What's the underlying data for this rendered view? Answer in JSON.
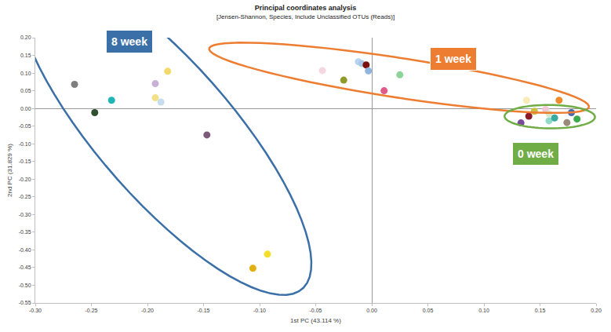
{
  "chart_data": {
    "type": "scatter",
    "title": "Principal coordinates analysis",
    "subtitle": "[Jensen-Shannon, Species, Include Unclassified OTUs (Reads)]",
    "x_label": "1st PC (43.114 %)",
    "y_label": "2nd PC (31.829 %)",
    "xlim": [
      -0.3,
      0.2
    ],
    "xticks": [
      {
        "value": -0.3,
        "label": "-0.30"
      },
      -0.25,
      {
        "value": -0.2,
        "label": "-0.20"
      },
      -0.15,
      {
        "value": -0.1,
        "label": "-0.10"
      },
      -0.05,
      {
        "value": 0,
        "label": "0.00"
      },
      0.05,
      {
        "value": 0.1,
        "label": "0.10"
      },
      0.15,
      {
        "value": 0.2,
        "label": "0.20"
      }
    ],
    "ylim": [
      -0.55,
      0.2
    ],
    "yticks": [
      -0.55,
      {
        "value": -0.5,
        "label": "-0.50"
      },
      -0.45,
      {
        "value": -0.4,
        "label": "-0.40"
      },
      -0.35,
      {
        "value": -0.3,
        "label": "-0.30"
      },
      -0.25,
      {
        "value": -0.2,
        "label": "-0.20"
      },
      -0.15,
      {
        "value": -0.1,
        "label": "-0.10"
      },
      -0.05,
      {
        "value": 0,
        "label": "0.00"
      },
      0.05,
      {
        "value": 0.1,
        "label": "0.10"
      },
      0.15,
      {
        "value": 0.2,
        "label": "0.20"
      }
    ],
    "grid": false,
    "marker": "circle",
    "series": [
      {
        "name": "8 week",
        "color": "#3B6FA8",
        "x": [
          -0.265,
          -0.247,
          -0.232,
          -0.193,
          -0.193,
          -0.188,
          -0.182,
          -0.147,
          -0.106,
          -0.093
        ],
        "values": [
          0.068,
          -0.012,
          0.023,
          0.07,
          0.03,
          0.018,
          0.105,
          -0.075,
          -0.452,
          -0.412
        ],
        "colors": [
          "#7F7F7F",
          "#2F4F2F",
          "#1FB5B5",
          "#C8B0D8",
          "#F5E08A",
          "#C5DDEE",
          "#F2D96A",
          "#7B5A7A",
          "#E0B010",
          "#F4E02A"
        ]
      },
      {
        "name": "1 week",
        "color": "#ED7D31",
        "x": [
          -0.044,
          -0.025,
          -0.012,
          -0.009,
          -0.005,
          -0.003,
          0.011,
          0.025,
          0.138,
          0.167
        ],
        "values": [
          0.107,
          0.08,
          0.132,
          0.127,
          0.123,
          0.106,
          0.05,
          0.095,
          0.023,
          0.023
        ],
        "colors": [
          "#F4D7E0",
          "#8E9A2A",
          "#B8D4EE",
          "#A9C8E8",
          "#7A1010",
          "#8FB4E0",
          "#E05A8A",
          "#8ED39A",
          "#F8EBB8",
          "#F08A2A"
        ]
      },
      {
        "name": "0 week",
        "color": "#70AD47",
        "x": [
          0.133,
          0.14,
          0.145,
          0.155,
          0.158,
          0.158,
          0.163,
          0.174,
          0.178,
          0.183
        ],
        "values": [
          -0.041,
          -0.022,
          -0.008,
          -0.003,
          -0.015,
          -0.035,
          -0.027,
          -0.04,
          -0.012,
          -0.03
        ],
        "colors": [
          "#7A4A9A",
          "#8A1A2A",
          "#C8C040",
          "#F2C8D8",
          "#D8E8C8",
          "#90DCC8",
          "#3AAAA0",
          "#9A8A7A",
          "#4A6AB0",
          "#3AAA4A"
        ]
      }
    ]
  }
}
